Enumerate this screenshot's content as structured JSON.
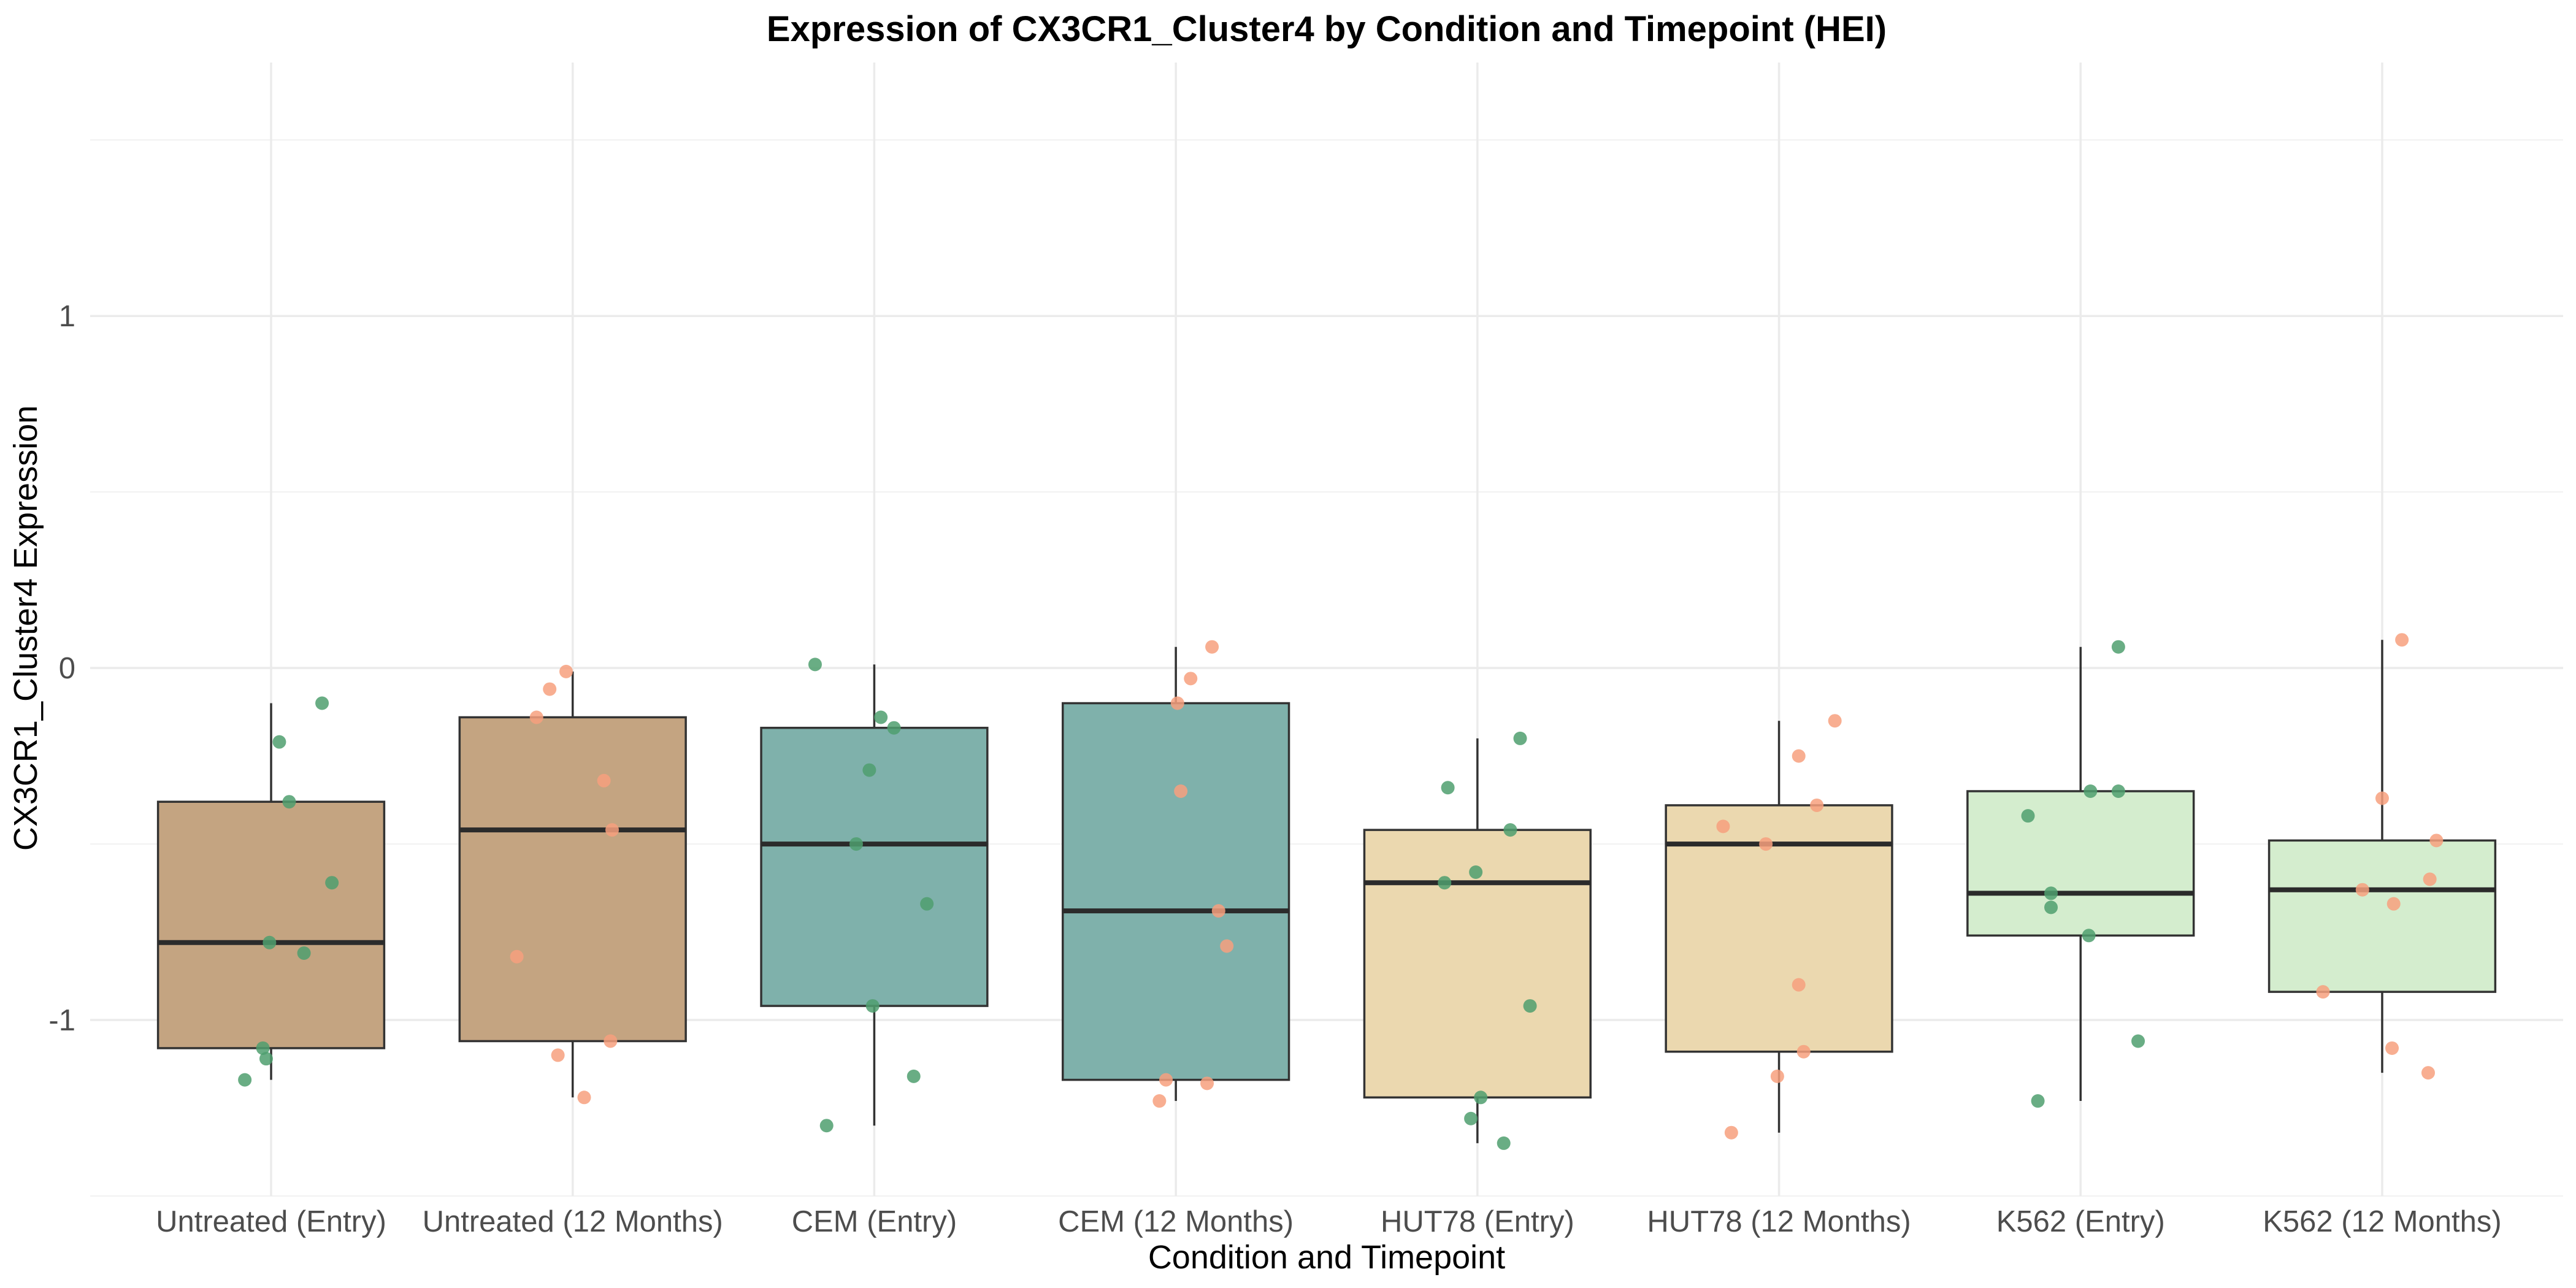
{
  "chart_data": {
    "type": "box",
    "title": "Expression of CX3CR1_Cluster4 by Condition and Timepoint (HEI)",
    "xlabel": "Condition and Timepoint",
    "ylabel": "CX3CR1_Cluster4 Expression",
    "ylim": [
      -1.5,
      1.72
    ],
    "y_ticks": [
      -1,
      0,
      1
    ],
    "grid": true,
    "legend": "none",
    "categories": [
      "Untreated (Entry)",
      "Untreated (12 Months)",
      "CEM (Entry)",
      "CEM (12 Months)",
      "HUT78 (Entry)",
      "HUT78 (12 Months)",
      "K562 (Entry)",
      "K562 (12 Months)"
    ],
    "boxes": [
      {
        "whisker_low": -1.17,
        "q1": -1.08,
        "median": -0.78,
        "q3": -0.38,
        "whisker_high": -0.1,
        "fill": "#C4A481",
        "point_color": "#4F9F6E",
        "points": [
          -0.21,
          -0.1,
          -0.38,
          -0.61,
          -0.78,
          -0.81,
          -1.08,
          -1.11,
          -1.17
        ]
      },
      {
        "whisker_low": -1.22,
        "q1": -1.06,
        "median": -0.46,
        "q3": -0.14,
        "whisker_high": -0.01,
        "fill": "#C4A481",
        "point_color": "#F7A07E",
        "points": [
          -0.01,
          -0.06,
          -0.14,
          -0.32,
          -0.46,
          -0.82,
          -1.1,
          -1.06,
          -1.22
        ]
      },
      {
        "whisker_low": -1.3,
        "q1": -0.96,
        "median": -0.5,
        "q3": -0.17,
        "whisker_high": 0.01,
        "fill": "#7FB1AB",
        "point_color": "#4F9F6E",
        "points": [
          0.01,
          -0.14,
          -0.17,
          -0.29,
          -0.5,
          -0.67,
          -0.96,
          -1.16,
          -1.3
        ]
      },
      {
        "whisker_low": -1.23,
        "q1": -1.17,
        "median": -0.69,
        "q3": -0.1,
        "whisker_high": 0.06,
        "fill": "#7FB1AB",
        "point_color": "#F7A07E",
        "points": [
          0.06,
          -0.03,
          -0.1,
          -0.35,
          -0.69,
          -0.79,
          -1.17,
          -1.18,
          -1.23
        ]
      },
      {
        "whisker_low": -1.35,
        "q1": -1.22,
        "median": -0.61,
        "q3": -0.46,
        "whisker_high": -0.2,
        "fill": "#EBD8AF",
        "point_color": "#4F9F6E",
        "points": [
          -0.2,
          -0.34,
          -0.46,
          -0.58,
          -0.61,
          -0.96,
          -1.22,
          -1.28,
          -1.35
        ]
      },
      {
        "whisker_low": -1.32,
        "q1": -1.09,
        "median": -0.5,
        "q3": -0.39,
        "whisker_high": -0.15,
        "fill": "#EBD8AF",
        "point_color": "#F7A07E",
        "points": [
          -0.15,
          -0.25,
          -0.39,
          -0.45,
          -0.5,
          -0.9,
          -1.09,
          -1.16,
          -1.32
        ]
      },
      {
        "whisker_low": -1.23,
        "q1": -0.76,
        "median": -0.64,
        "q3": -0.35,
        "whisker_high": 0.06,
        "fill": "#D4EDCE",
        "point_color": "#4F9F6E",
        "points": [
          0.06,
          -0.42,
          -0.35,
          -0.35,
          -0.64,
          -0.68,
          -0.76,
          -1.06,
          -1.23
        ]
      },
      {
        "whisker_low": -1.15,
        "q1": -0.92,
        "median": -0.63,
        "q3": -0.49,
        "whisker_high": 0.08,
        "fill": "#D4EDCE",
        "point_color": "#F7A07E",
        "points": [
          0.08,
          -0.37,
          -0.49,
          -0.6,
          -0.63,
          -0.67,
          -0.92,
          -1.08,
          -1.15
        ]
      }
    ]
  }
}
